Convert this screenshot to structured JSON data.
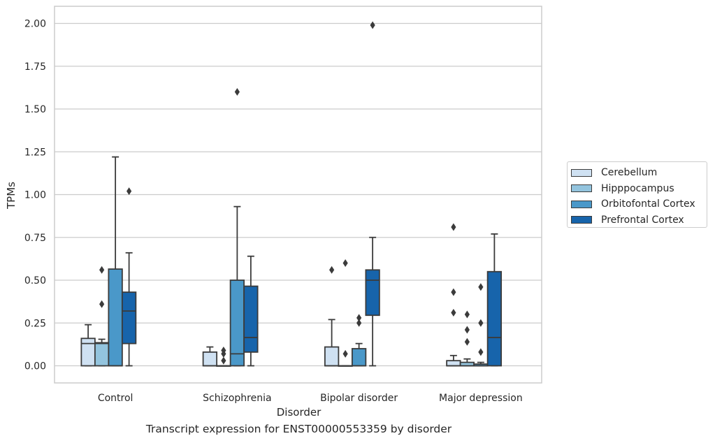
{
  "chart_data": {
    "type": "box",
    "caption": "Transcript expression for ENST00000553359 by disorder",
    "xlabel": "Disorder",
    "ylabel": "TPMs",
    "ylim": [
      -0.1,
      2.1
    ],
    "yticks": [
      "0.00",
      "0.25",
      "0.50",
      "0.75",
      "1.00",
      "1.25",
      "1.50",
      "1.75",
      "2.00"
    ],
    "grid": "horizontal",
    "legend_position": "right",
    "categories": [
      "Control",
      "Schizophrenia",
      "Bipolar disorder",
      "Major depression"
    ],
    "series": [
      {
        "name": "Cerebellum",
        "color": "#cfe1f2",
        "boxes": [
          {
            "q1": 0.0,
            "median": 0.13,
            "q3": 0.16,
            "whisker_low": 0.0,
            "whisker_high": 0.24,
            "outliers": []
          },
          {
            "q1": 0.0,
            "median": 0.0,
            "q3": 0.08,
            "whisker_low": 0.0,
            "whisker_high": 0.11,
            "outliers": []
          },
          {
            "q1": 0.0,
            "median": 0.0,
            "q3": 0.11,
            "whisker_low": 0.0,
            "whisker_high": 0.27,
            "outliers": [
              0.56
            ]
          },
          {
            "q1": 0.0,
            "median": 0.0,
            "q3": 0.03,
            "whisker_low": 0.0,
            "whisker_high": 0.06,
            "outliers": [
              0.31,
              0.43,
              0.81
            ]
          }
        ]
      },
      {
        "name": "Hipppocampus",
        "color": "#93c4de",
        "boxes": [
          {
            "q1": 0.0,
            "median": 0.13,
            "q3": 0.135,
            "whisker_low": 0.0,
            "whisker_high": 0.155,
            "outliers": [
              0.36,
              0.56
            ]
          },
          {
            "q1": 0.0,
            "median": 0.0,
            "q3": 0.0,
            "whisker_low": 0.0,
            "whisker_high": 0.0,
            "outliers": [
              0.03,
              0.07,
              0.09
            ]
          },
          {
            "q1": 0.0,
            "median": 0.0,
            "q3": 0.0,
            "whisker_low": 0.0,
            "whisker_high": 0.0,
            "outliers": [
              0.07,
              0.6
            ]
          },
          {
            "q1": 0.0,
            "median": 0.0,
            "q3": 0.02,
            "whisker_low": 0.0,
            "whisker_high": 0.04,
            "outliers": [
              0.14,
              0.21,
              0.3
            ]
          }
        ]
      },
      {
        "name": "Orbitofontal Cortex",
        "color": "#4a98c9",
        "boxes": [
          {
            "q1": 0.0,
            "median": 0.0,
            "q3": 0.565,
            "whisker_low": 0.0,
            "whisker_high": 1.22,
            "outliers": []
          },
          {
            "q1": 0.0,
            "median": 0.07,
            "q3": 0.5,
            "whisker_low": 0.0,
            "whisker_high": 0.93,
            "outliers": [
              1.6
            ]
          },
          {
            "q1": 0.0,
            "median": 0.0,
            "q3": 0.1,
            "whisker_low": 0.0,
            "whisker_high": 0.13,
            "outliers": [
              0.25,
              0.28
            ]
          },
          {
            "q1": 0.0,
            "median": 0.0,
            "q3": 0.01,
            "whisker_low": 0.0,
            "whisker_high": 0.02,
            "outliers": [
              0.08,
              0.25,
              0.46
            ]
          }
        ]
      },
      {
        "name": "Prefrontal Cortex",
        "color": "#1764ab",
        "boxes": [
          {
            "q1": 0.13,
            "median": 0.32,
            "q3": 0.43,
            "whisker_low": 0.0,
            "whisker_high": 0.66,
            "outliers": [
              1.02
            ]
          },
          {
            "q1": 0.08,
            "median": 0.165,
            "q3": 0.465,
            "whisker_low": 0.0,
            "whisker_high": 0.64,
            "outliers": []
          },
          {
            "q1": 0.295,
            "median": 0.5,
            "q3": 0.56,
            "whisker_low": 0.0,
            "whisker_high": 0.75,
            "outliers": [
              1.99
            ]
          },
          {
            "q1": 0.0,
            "median": 0.165,
            "q3": 0.55,
            "whisker_low": 0.0,
            "whisker_high": 0.77,
            "outliers": []
          }
        ]
      }
    ]
  }
}
